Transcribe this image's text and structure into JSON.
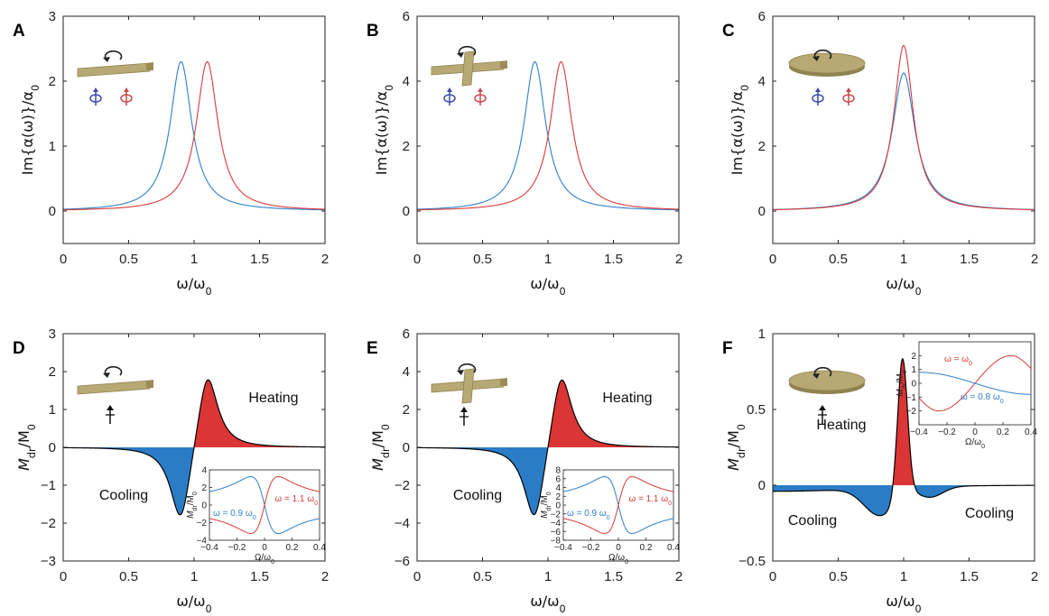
{
  "colors": {
    "blue": "#2f7fc8",
    "red": "#d83a3a",
    "fill_blue": "#2b7cc6",
    "fill_red": "#db3535",
    "black": "#000000",
    "gold": "#b8a874",
    "icon_blue": "#3b4aa8",
    "icon_red": "#c74a4a"
  },
  "panels": {
    "A": "A",
    "B": "B",
    "C": "C",
    "D": "D",
    "E": "E",
    "F": "F"
  },
  "labels": {
    "xlabel": "ω/ω",
    "xlabel_sub": "0",
    "im_ylabel": "Im{α(ω)}/α",
    "im_ylabel_sub": "0",
    "m_ylabel": "M",
    "m_ylabel_sub": "dr",
    "m_ylabel_den": "/M",
    "m_ylabel_den_sub": "0",
    "heating": "Heating",
    "cooling": "Cooling",
    "inset_xlabel": "Ω/ω",
    "inset_xlabel_sub": "0",
    "inset_ylabel": "M",
    "inset_ylabel_sub": "dr",
    "inset_ylabel_den": "/M",
    "inset_ylabel_den_sub": "0",
    "inset_D_blue": "ω = 0.9 ω",
    "inset_D_red": "ω = 1.1 ω",
    "inset_E_blue": "ω = 0.9 ω",
    "inset_E_red": "ω = 1.1 ω",
    "inset_F_red": "ω = ω",
    "inset_F_blue": "ω = 0.8 ω",
    "omega_sub": "0"
  },
  "chart_data": [
    {
      "panel": "A",
      "type": "line",
      "xlim": [
        0,
        2
      ],
      "ylim": [
        -0.5,
        3
      ],
      "xticks": [
        "0",
        "0.5",
        "1",
        "1.5",
        "2"
      ],
      "yticks": [
        "0",
        "1",
        "2",
        "3"
      ],
      "series": [
        {
          "color": "blue",
          "peak_x": 0.9,
          "peak_y": 2.3
        },
        {
          "color": "red",
          "peak_x": 1.1,
          "peak_y": 2.3
        }
      ]
    },
    {
      "panel": "B",
      "type": "line",
      "xlim": [
        0,
        2
      ],
      "ylim": [
        -1,
        6
      ],
      "xticks": [
        "0",
        "0.5",
        "1",
        "1.5",
        "2"
      ],
      "yticks": [
        "0",
        "2",
        "4",
        "6"
      ],
      "series": [
        {
          "color": "blue",
          "peak_x": 0.9,
          "peak_y": 4.6
        },
        {
          "color": "red",
          "peak_x": 1.1,
          "peak_y": 4.6
        }
      ]
    },
    {
      "panel": "C",
      "type": "line",
      "xlim": [
        0,
        2
      ],
      "ylim": [
        -1,
        6
      ],
      "xticks": [
        "0",
        "0.5",
        "1",
        "1.5",
        "2"
      ],
      "yticks": [
        "0",
        "2",
        "4",
        "6"
      ],
      "series": [
        {
          "color": "blue",
          "peak_x": 1.0,
          "peak_y": 4.25
        },
        {
          "color": "red",
          "peak_x": 1.0,
          "peak_y": 5.1
        }
      ]
    },
    {
      "panel": "D",
      "type": "area",
      "xlim": [
        0,
        2
      ],
      "ylim": [
        -3,
        3
      ],
      "xticks": [
        "0",
        "0.5",
        "1",
        "1.5",
        "2"
      ],
      "yticks": [
        "-3",
        "-2",
        "-1",
        "0",
        "1",
        "2",
        "3"
      ],
      "min": {
        "x": 0.89,
        "y": -1.8
      },
      "max": {
        "x": 1.11,
        "y": 1.78
      },
      "inset": {
        "xlim": [
          -0.4,
          0.4
        ],
        "ylim": [
          -4,
          4
        ],
        "xticks": [
          "-0.4",
          "-0.2",
          "0",
          "0.2",
          "0.4"
        ],
        "yticks": [
          "-4",
          "-2",
          "0",
          "2",
          "4"
        ],
        "series": [
          {
            "color": "blue",
            "omega": 0.9,
            "amp": 3.4
          },
          {
            "color": "red",
            "omega": 1.1,
            "amp": -3.4
          }
        ]
      }
    },
    {
      "panel": "E",
      "type": "area",
      "xlim": [
        0,
        2
      ],
      "ylim": [
        -6,
        6
      ],
      "xticks": [
        "0",
        "0.5",
        "1",
        "1.5",
        "2"
      ],
      "yticks": [
        "-6",
        "-4",
        "-2",
        "0",
        "2",
        "4",
        "6"
      ],
      "min": {
        "x": 0.89,
        "y": -3.6
      },
      "max": {
        "x": 1.11,
        "y": 3.55
      },
      "inset": {
        "xlim": [
          -0.4,
          0.4
        ],
        "ylim": [
          -8,
          8
        ],
        "xticks": [
          "-0.4",
          "-0.2",
          "0",
          "0.2",
          "0.4"
        ],
        "yticks": [
          "-8",
          "-6",
          "-4",
          "-2",
          "0",
          "2",
          "4",
          "6",
          "8"
        ],
        "series": [
          {
            "color": "blue",
            "omega": 0.9,
            "amp": 6.8
          },
          {
            "color": "red",
            "omega": 1.1,
            "amp": -6.8
          }
        ]
      }
    },
    {
      "panel": "F",
      "type": "area",
      "xlim": [
        0,
        2
      ],
      "ylim": [
        -0.5,
        1
      ],
      "xticks": [
        "0",
        "0.5",
        "1",
        "1.5",
        "2"
      ],
      "yticks": [
        "-0.5",
        "0",
        "0.5",
        "1"
      ],
      "max": {
        "x": 0.99,
        "y": 0.86
      },
      "min_left": {
        "x": 0.8,
        "y": -0.18
      },
      "min_right": {
        "x": 1.18,
        "y": -0.07
      },
      "inset": {
        "xlim": [
          -0.4,
          0.4
        ],
        "ylim": [
          -3,
          3
        ],
        "xticks": [
          "-0.4",
          "-0.2",
          "0",
          "0.2",
          "0.4"
        ],
        "yticks": [
          "-2",
          "-1",
          "0",
          "1",
          "2"
        ],
        "series": [
          {
            "color": "red",
            "omega": 1.0,
            "amp": 2.0
          },
          {
            "color": "blue",
            "omega": 0.8,
            "amp": -0.8
          }
        ]
      }
    }
  ]
}
